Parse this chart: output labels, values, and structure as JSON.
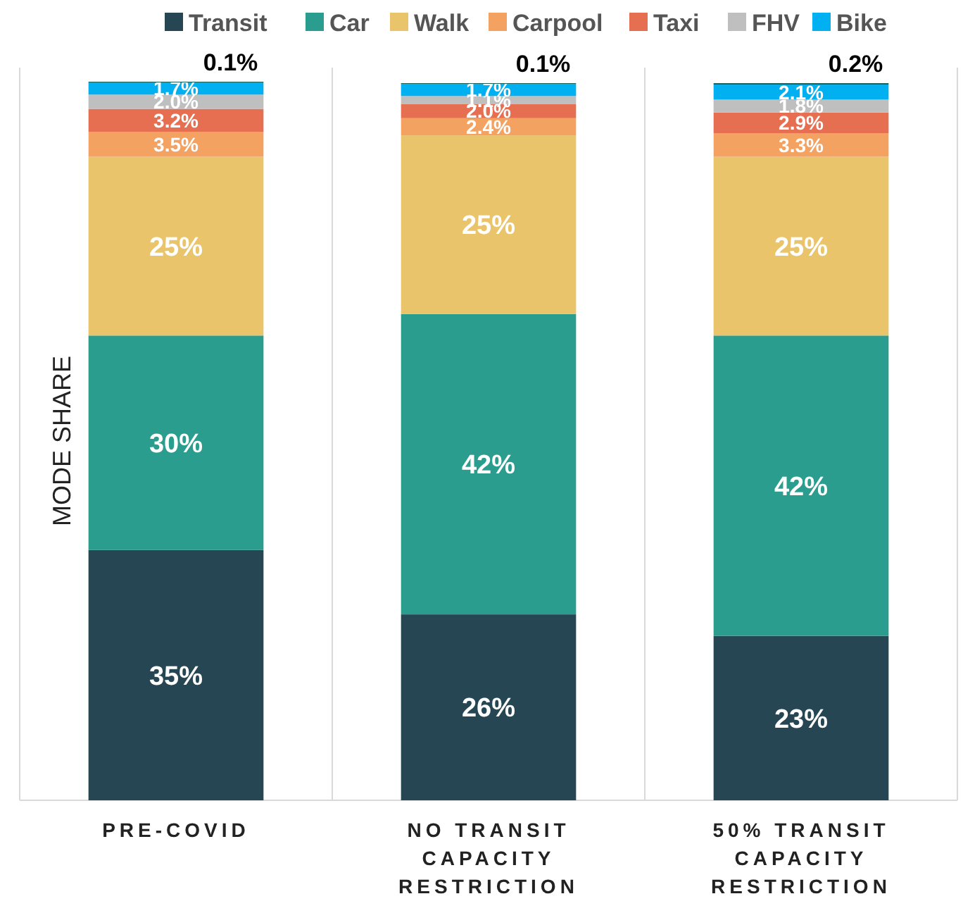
{
  "chart_data": {
    "type": "bar",
    "stacked": true,
    "ylabel": "MODE SHARE",
    "categories": [
      "PRE-COVID",
      "NO TRANSIT CAPACITY RESTRICTION",
      "50% TRANSIT CAPACITY RESTRICTION"
    ],
    "ylim": [
      0,
      100.5
    ],
    "tick_labels": "x",
    "legend": "top",
    "data_labels": true,
    "series": [
      {
        "name": "Transit",
        "color": "#264653",
        "values": [
          35,
          26,
          23
        ],
        "value_labels": [
          "35%",
          "26%",
          "23%"
        ]
      },
      {
        "name": "Car",
        "color": "#2a9d8f",
        "values": [
          30,
          42,
          42
        ],
        "value_labels": [
          "30%",
          "42%",
          "42%"
        ]
      },
      {
        "name": "Walk",
        "color": "#e9c46a",
        "values": [
          25,
          25,
          25
        ],
        "value_labels": [
          "25%",
          "25%",
          "25%"
        ]
      },
      {
        "name": "Carpool",
        "color": "#f4a261",
        "values": [
          3.5,
          2.4,
          3.3
        ],
        "value_labels": [
          "3.5%",
          "2.4%",
          "3.3%"
        ]
      },
      {
        "name": "Taxi",
        "color": "#e76f51",
        "values": [
          3.2,
          2.0,
          2.9
        ],
        "value_labels": [
          "3.2%",
          "2.0%",
          "2.9%"
        ]
      },
      {
        "name": "FHV",
        "color": "#bfbfbf",
        "values": [
          2.0,
          1.1,
          1.8
        ],
        "value_labels": [
          "2.0%",
          "1.1%",
          "1.8%"
        ]
      },
      {
        "name": "Bike",
        "color": "#00b0f0",
        "values": [
          1.7,
          1.7,
          2.1
        ],
        "value_labels": [
          "1.7%",
          "1.7%",
          "2.1%"
        ]
      },
      {
        "color": "#1d5f55",
        "values": [
          0.1,
          0.1,
          0.2
        ],
        "value_labels": [
          "0.1%",
          "0.1%",
          "0.2%"
        ]
      }
    ]
  }
}
